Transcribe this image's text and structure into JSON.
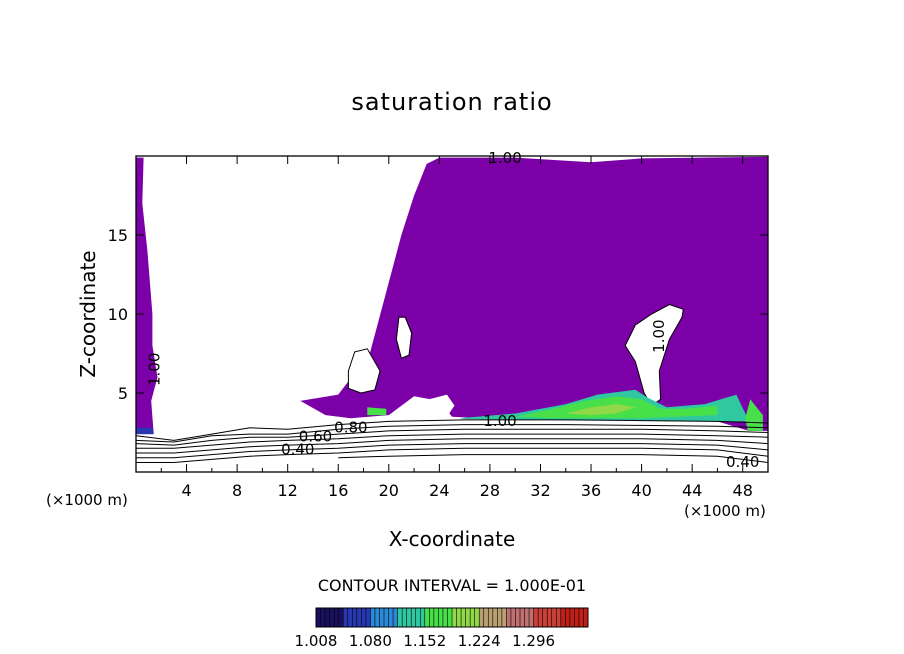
{
  "chart_data": {
    "type": "heatmap",
    "title": "saturation ratio",
    "xlabel": "X-coordinate",
    "ylabel": "Z-coordinate",
    "x_unit": "(×1000 m)",
    "xlim": [
      0,
      50
    ],
    "ylim": [
      0,
      20
    ],
    "x_ticks": [
      4,
      8,
      12,
      16,
      20,
      24,
      28,
      32,
      36,
      40,
      44,
      48
    ],
    "y_ticks": [
      5,
      10,
      15
    ],
    "contour_interval_label": "CONTOUR INTERVAL = 1.000E-01",
    "colorbar": {
      "min": 1.008,
      "max": 1.368,
      "tick_labels": [
        "1.008",
        "1.080",
        "1.152",
        "1.224",
        "1.296"
      ],
      "tick_values": [
        1.008,
        1.08,
        1.152,
        1.224,
        1.296
      ]
    },
    "contour_labels": [
      {
        "text": "1.00",
        "x": 29.2,
        "z": 19.85
      },
      {
        "text": "1.00",
        "x": 1.5,
        "z": 6.5
      },
      {
        "text": "1.00",
        "x": 41.4,
        "z": 8.6
      },
      {
        "text": "1.00",
        "x": 28.8,
        "z": 3.2
      },
      {
        "text": "0.80",
        "x": 17.0,
        "z": 2.8
      },
      {
        "text": "0.60",
        "x": 14.2,
        "z": 2.2
      },
      {
        "text": "0.40",
        "x": 12.8,
        "z": 1.4
      },
      {
        "text": "0.40",
        "x": 48.0,
        "z": 0.6
      }
    ],
    "colors": {
      "supersaturated_base": "#7b00a8",
      "colorbar_scale": [
        "#1a1060",
        "#2838b0",
        "#2a8ad8",
        "#30c8a0",
        "#48e048",
        "#90d848",
        "#b8a070",
        "#c07070",
        "#c84038",
        "#c02018"
      ]
    }
  }
}
